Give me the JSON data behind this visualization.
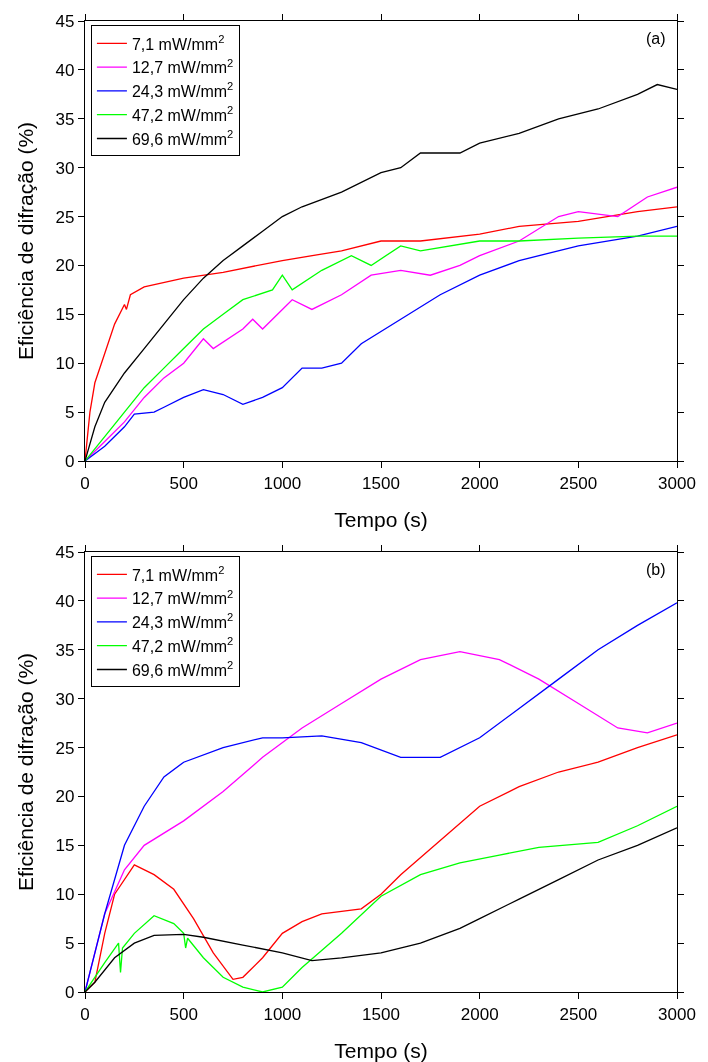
{
  "chart_data": [
    {
      "type": "line",
      "xlabel": "Tempo (s)",
      "ylabel": "Eficiência de difração (%)",
      "annotations": [
        "(a)"
      ],
      "xlim": [
        0,
        3000
      ],
      "xticks": [
        0,
        500,
        1000,
        1500,
        2000,
        2500,
        3000
      ],
      "ylim": [
        0,
        45
      ],
      "yticks": [
        0,
        5,
        10,
        15,
        20,
        25,
        30,
        35,
        40,
        45
      ],
      "grid": false,
      "legend": "top left",
      "line_style": "solid",
      "marker": "none",
      "series": [
        {
          "name": "7,1 mW/mm$^{2}$",
          "color": "#ff0000",
          "x": [
            0,
            25,
            50,
            100,
            150,
            200,
            210,
            230,
            300,
            500,
            700,
            1000,
            1300,
            1500,
            1700,
            2000,
            2200,
            2500,
            2800,
            3000
          ],
          "values": [
            0,
            5,
            8,
            11,
            14,
            16,
            15.5,
            17,
            17.8,
            18.7,
            19.3,
            20.5,
            21.5,
            22.5,
            22.5,
            23.2,
            24,
            24.5,
            25.5,
            26
          ]
        },
        {
          "name": "12,7 mW/mm$^{2}$",
          "color": "#ff00ff",
          "x": [
            0,
            100,
            200,
            300,
            400,
            500,
            600,
            650,
            800,
            850,
            900,
            1050,
            1150,
            1300,
            1450,
            1600,
            1750,
            1900,
            2000,
            2200,
            2400,
            2500,
            2700,
            2850,
            3000
          ],
          "values": [
            0,
            2,
            4,
            6.5,
            8.5,
            10,
            12.5,
            11.5,
            13.5,
            14.5,
            13.5,
            16.5,
            15.5,
            17,
            19,
            19.5,
            19,
            20,
            21,
            22.5,
            25,
            25.5,
            25,
            27,
            28
          ]
        },
        {
          "name": "24,3 mW/mm$^{2}$",
          "color": "#0000ff",
          "x": [
            0,
            100,
            200,
            250,
            350,
            400,
            500,
            600,
            700,
            800,
            900,
            1000,
            1100,
            1200,
            1300,
            1400,
            1600,
            1800,
            2000,
            2200,
            2500,
            2800,
            3000
          ],
          "values": [
            0,
            1.5,
            3.5,
            4.8,
            5,
            5.5,
            6.5,
            7.3,
            6.8,
            5.8,
            6.5,
            7.5,
            9.5,
            9.5,
            10,
            12,
            14.5,
            17,
            19,
            20.5,
            22,
            23,
            24
          ]
        },
        {
          "name": "47,2 mW/mm$^{2}$",
          "color": "#00ff00",
          "x": [
            0,
            100,
            200,
            300,
            400,
            500,
            600,
            700,
            800,
            950,
            1000,
            1050,
            1200,
            1350,
            1450,
            1600,
            1700,
            2000,
            2200,
            2500,
            2800,
            3000
          ],
          "values": [
            0,
            2.5,
            5,
            7.5,
            9.5,
            11.5,
            13.5,
            15,
            16.5,
            17.5,
            19,
            17.5,
            19.5,
            21,
            20,
            22,
            21.5,
            22.5,
            22.5,
            22.8,
            23,
            23
          ]
        },
        {
          "name": "69,6 mW/mm$^{2}$",
          "color": "#000000",
          "x": [
            0,
            50,
            100,
            200,
            300,
            400,
            500,
            600,
            700,
            800,
            900,
            1000,
            1100,
            1300,
            1500,
            1600,
            1700,
            1900,
            2000,
            2200,
            2400,
            2600,
            2800,
            2900,
            3000
          ],
          "values": [
            0,
            3.5,
            6,
            9,
            11.5,
            14,
            16.5,
            18.7,
            20.5,
            22,
            23.5,
            25,
            26,
            27.5,
            29.5,
            30,
            31.5,
            31.5,
            32.5,
            33.5,
            35,
            36,
            37.5,
            38.5,
            38
          ]
        }
      ]
    },
    {
      "type": "line",
      "xlabel": "Tempo (s)",
      "ylabel": "Eficiência de difração (%)",
      "annotations": [
        "(b)"
      ],
      "xlim": [
        0,
        3000
      ],
      "xticks": [
        0,
        500,
        1000,
        1500,
        2000,
        2500,
        3000
      ],
      "ylim": [
        0,
        45
      ],
      "yticks": [
        0,
        5,
        10,
        15,
        20,
        25,
        30,
        35,
        40,
        45
      ],
      "grid": false,
      "legend": "top left",
      "line_style": "solid",
      "marker": "none",
      "series": [
        {
          "name": "7,1 mW/mm$^{2}$",
          "color": "#ff0000",
          "x": [
            0,
            50,
            100,
            150,
            250,
            350,
            450,
            550,
            650,
            750,
            800,
            900,
            1000,
            1100,
            1200,
            1400,
            1500,
            1600,
            1800,
            2000,
            2200,
            2400,
            2600,
            2800,
            3000
          ],
          "values": [
            0,
            1,
            6,
            10,
            13,
            12,
            10.5,
            7.5,
            4,
            1.3,
            1.5,
            3.5,
            6,
            7.2,
            8,
            8.5,
            10,
            12,
            15.5,
            19,
            21,
            22.5,
            23.5,
            25,
            26.3
          ]
        },
        {
          "name": "12,7 mW/mm$^{2}$",
          "color": "#ff00ff",
          "x": [
            0,
            100,
            200,
            300,
            500,
            700,
            900,
            1100,
            1300,
            1500,
            1700,
            1900,
            2100,
            2300,
            2500,
            2700,
            2850,
            3000
          ],
          "values": [
            0,
            8,
            12.5,
            15,
            17.5,
            20.5,
            24,
            27,
            29.5,
            32,
            34,
            34.8,
            34,
            32,
            29.5,
            27,
            26.5,
            27.5
          ]
        },
        {
          "name": "24,3 mW/mm$^{2}$",
          "color": "#0000ff",
          "x": [
            0,
            50,
            100,
            200,
            300,
            400,
            500,
            700,
            900,
            1000,
            1200,
            1400,
            1600,
            1800,
            2000,
            2200,
            2400,
            2600,
            2800,
            3000
          ],
          "values": [
            0,
            4,
            8,
            15,
            19,
            22,
            23.5,
            25,
            26,
            26,
            26.2,
            25.5,
            24,
            24,
            26,
            29,
            32,
            35,
            37.5,
            39.8
          ]
        },
        {
          "name": "47,2 mW/mm$^{2}$",
          "color": "#00ff00",
          "x": [
            0,
            100,
            170,
            180,
            190,
            250,
            350,
            450,
            500,
            510,
            520,
            600,
            700,
            800,
            900,
            1000,
            1100,
            1300,
            1500,
            1700,
            1900,
            2100,
            2300,
            2600,
            2800,
            3000
          ],
          "values": [
            0,
            3,
            5,
            2,
            4.5,
            6,
            7.8,
            7,
            6,
            4.5,
            5.5,
            3.5,
            1.5,
            0.5,
            0,
            0.5,
            2.5,
            6,
            9.8,
            12,
            13.2,
            14,
            14.8,
            15.3,
            17,
            19
          ]
        },
        {
          "name": "69,6 mW/mm$^{2}$",
          "color": "#000000",
          "x": [
            0,
            50,
            150,
            250,
            350,
            500,
            600,
            800,
            1000,
            1150,
            1300,
            1500,
            1700,
            1900,
            2000,
            2200,
            2400,
            2600,
            2800,
            3000
          ],
          "values": [
            0,
            1,
            3.5,
            5,
            5.8,
            5.9,
            5.6,
            4.8,
            4,
            3.2,
            3.5,
            4,
            5,
            6.5,
            7.5,
            9.5,
            11.5,
            13.5,
            15,
            16.8
          ]
        }
      ]
    }
  ]
}
